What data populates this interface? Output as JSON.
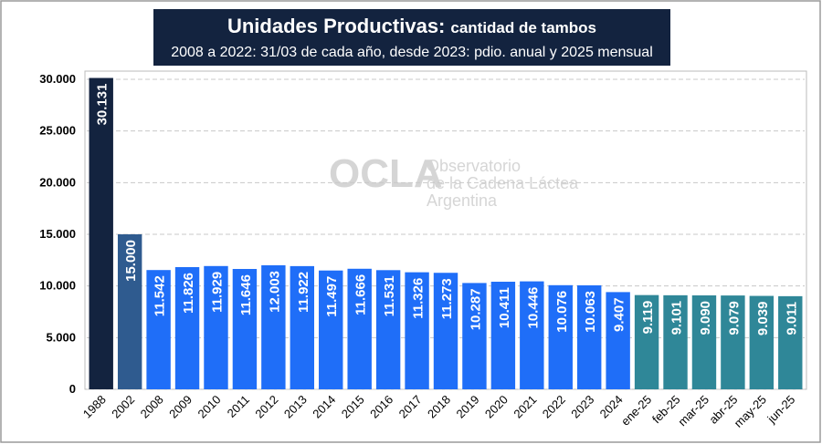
{
  "chart_data": {
    "type": "bar",
    "title": "Unidades Productivas:",
    "title_suffix": "cantidad de tambos",
    "subtitle": "2008 a 2022: 31/03 de cada año, desde 2023: pdio. anual y 2025 mensual",
    "watermark": [
      "OCLA",
      "Observatorio",
      "de la Cadena Láctea",
      "Argentina"
    ],
    "categories": [
      "1988",
      "2002",
      "2008",
      "2009",
      "2010",
      "2011",
      "2012",
      "2013",
      "2014",
      "2015",
      "2016",
      "2017",
      "2018",
      "2019",
      "2020",
      "2021",
      "2022",
      "2023",
      "2024",
      "ene-25",
      "feb-25",
      "mar-25",
      "abr-25",
      "may-25",
      "jun-25"
    ],
    "values": [
      30131,
      15000,
      11542,
      11826,
      11929,
      11646,
      12003,
      11922,
      11497,
      11666,
      11531,
      11326,
      11273,
      10287,
      10411,
      10446,
      10076,
      10063,
      9407,
      9119,
      9101,
      9090,
      9079,
      9039,
      9011
    ],
    "value_labels": [
      "30.131",
      "15.000",
      "11.542",
      "11.826",
      "11.929",
      "11.646",
      "12.003",
      "11.922",
      "11.497",
      "11.666",
      "11.531",
      "11.326",
      "11.273",
      "10.287",
      "10.411",
      "10.446",
      "10.076",
      "10.063",
      "9.407",
      "9.119",
      "9.101",
      "9.090",
      "9.079",
      "9.039",
      "9.011"
    ],
    "colors": [
      "#13233f",
      "#2f5b8f",
      "#1f6ef8",
      "#1f6ef8",
      "#1f6ef8",
      "#1f6ef8",
      "#1f6ef8",
      "#1f6ef8",
      "#1f6ef8",
      "#1f6ef8",
      "#1f6ef8",
      "#1f6ef8",
      "#1f6ef8",
      "#1f6ef8",
      "#1f6ef8",
      "#1f6ef8",
      "#1f6ef8",
      "#1f6ef8",
      "#1f6ef8",
      "#2f8798",
      "#2f8798",
      "#2f8798",
      "#2f8798",
      "#2f8798",
      "#2f8798"
    ],
    "ylim": [
      0,
      30000
    ],
    "yticks": [
      0,
      {
        "value": 5000,
        "label": "5.000"
      },
      {
        "value": 10000,
        "label": "10.000"
      },
      {
        "value": 15000,
        "label": "15.000"
      },
      {
        "value": 20000,
        "label": "20.000"
      },
      {
        "value": 25000,
        "label": "25.000"
      },
      {
        "value": 30000,
        "label": "30.000"
      }
    ],
    "grid": true
  }
}
